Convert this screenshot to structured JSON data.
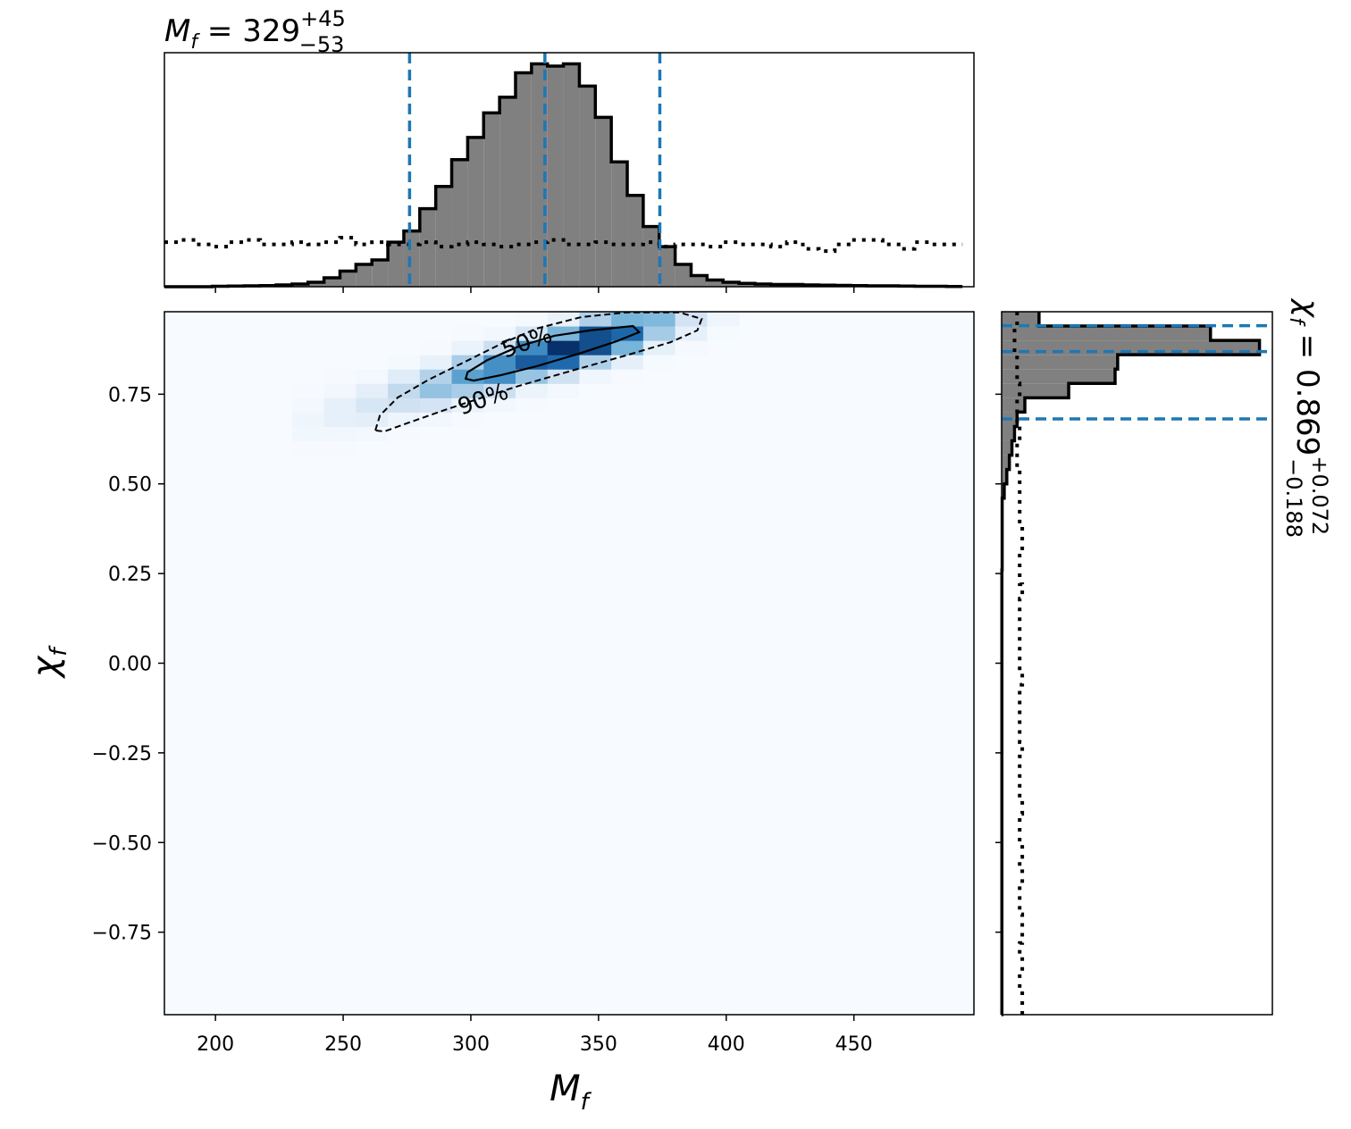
{
  "chart_data": [
    {
      "type": "histogram",
      "orientation": "vertical",
      "title": {
        "symbol": "M",
        "sub": "f",
        "rest": " = 329",
        "plus": "+45",
        "minus": "−53"
      },
      "bins": [
        180,
        186.25,
        192.5,
        198.75,
        205,
        211.25,
        217.5,
        223.75,
        230,
        236.25,
        242.5,
        248.75,
        255,
        261.25,
        267.5,
        273.75,
        280,
        286.25,
        292.5,
        298.75,
        305,
        311.25,
        317.5,
        323.75,
        330,
        336.25,
        342.5,
        348.75,
        355,
        361.25,
        367.5,
        373.75,
        380,
        386.25,
        392.5,
        398.75,
        405,
        411.25,
        417.5,
        423.75,
        430,
        436.25,
        442.5,
        448.75,
        455,
        461.25,
        467.5,
        473.75,
        480,
        486.25,
        492.5
      ],
      "values": [
        0,
        0,
        0,
        0.002,
        0.003,
        0.004,
        0.005,
        0.008,
        0.012,
        0.02,
        0.04,
        0.07,
        0.1,
        0.12,
        0.2,
        0.25,
        0.35,
        0.45,
        0.57,
        0.67,
        0.78,
        0.85,
        0.96,
        1.0,
        0.99,
        1.0,
        0.9,
        0.76,
        0.56,
        0.41,
        0.27,
        0.18,
        0.1,
        0.05,
        0.03,
        0.02,
        0.015,
        0.012,
        0.01,
        0.01,
        0.008,
        0.007,
        0.006,
        0.005,
        0.004,
        0.004,
        0.003,
        0.002,
        0.002,
        0.001
      ],
      "prior_values": [
        0.2,
        0.21,
        0.19,
        0.18,
        0.2,
        0.21,
        0.19,
        0.19,
        0.2,
        0.19,
        0.2,
        0.22,
        0.19,
        0.2,
        0.19,
        0.19,
        0.2,
        0.18,
        0.19,
        0.2,
        0.19,
        0.18,
        0.19,
        0.2,
        0.21,
        0.19,
        0.19,
        0.2,
        0.19,
        0.19,
        0.2,
        0.18,
        0.19,
        0.19,
        0.18,
        0.2,
        0.19,
        0.19,
        0.18,
        0.2,
        0.17,
        0.16,
        0.19,
        0.21,
        0.21,
        0.19,
        0.17,
        0.2,
        0.19,
        0.19
      ],
      "color": "#808080",
      "quantile_color": "#1f77b4",
      "quantiles": [
        276,
        329,
        374
      ],
      "xlim": [
        180,
        497
      ],
      "ylim": [
        0,
        1.05
      ],
      "xticks": [
        200,
        250,
        300,
        350,
        400,
        450
      ]
    },
    {
      "type": "heatmap",
      "xlabel": {
        "symbol": "M",
        "sub": "f"
      },
      "ylabel": {
        "symbol": "χ",
        "sub": "f"
      },
      "xlim": [
        180,
        497
      ],
      "ylim": [
        -0.98,
        0.98
      ],
      "xticks": [
        200,
        250,
        300,
        350,
        400,
        450
      ],
      "yticks": [
        {
          "value": -0.75,
          "label": "−0.75"
        },
        {
          "value": -0.5,
          "label": "−0.50"
        },
        {
          "value": -0.25,
          "label": "−0.25"
        },
        {
          "value": 0,
          "label": "0.00"
        },
        0.25,
        {
          "value": 0.5,
          "label": "0.50"
        },
        0.75
      ],
      "density": {
        "x_edges": [
          230,
          242.5,
          255,
          267.5,
          280,
          292.5,
          305,
          317.5,
          330,
          342.5,
          355,
          367.5,
          380,
          392.5,
          405
        ],
        "y_edges": [
          0.5,
          0.54,
          0.58,
          0.62,
          0.66,
          0.7,
          0.74,
          0.78,
          0.82,
          0.86,
          0.9,
          0.94,
          0.98
        ],
        "values": [
          [
            0,
            0,
            0.002,
            0.014,
            0.019,
            0.007,
            0.001,
            0,
            0,
            0,
            0,
            0
          ],
          [
            0,
            0,
            0.001,
            0.012,
            0.043,
            0.043,
            0.012,
            0.001,
            0,
            0,
            0,
            0
          ],
          [
            0,
            0,
            0,
            0.007,
            0.052,
            0.1,
            0.052,
            0.007,
            0,
            0,
            0,
            0
          ],
          [
            0,
            0,
            0,
            0.001,
            0.023,
            0.126,
            0.173,
            0.065,
            0.006,
            0,
            0,
            0
          ],
          [
            0,
            0,
            0,
            0,
            0.011,
            0.108,
            0.288,
            0.21,
            0.039,
            0.002,
            0,
            0
          ],
          [
            0,
            0,
            0,
            0,
            0.002,
            0.032,
            0.234,
            0.45,
            0.234,
            0.032,
            0.001,
            0
          ],
          [
            0,
            0,
            0,
            0,
            0,
            0.011,
            0.143,
            0.527,
            0.527,
            0.143,
            0.011,
            0
          ],
          [
            0,
            0,
            0,
            0,
            0,
            0.001,
            0.027,
            0.281,
            0.749,
            0.546,
            0.101,
            0.006
          ],
          [
            0,
            0,
            0,
            0,
            0,
            0,
            0.008,
            0.127,
            0.686,
            0.941,
            0.353,
            0.034
          ],
          [
            0,
            0,
            0,
            0,
            0,
            0,
            0,
            0.016,
            0.219,
            0.808,
            0.808,
            0.219
          ],
          [
            0,
            0,
            0,
            0,
            0,
            0,
            0,
            0.001,
            0.049,
            0.364,
            0.7,
            0.364
          ],
          [
            0,
            0,
            0,
            0,
            0,
            0,
            0,
            0,
            0.003,
            0.046,
            0.245,
            0.336
          ],
          [
            0,
            0,
            0,
            0,
            0,
            0,
            0,
            0,
            0,
            0.004,
            0.043,
            0.115
          ],
          [
            0,
            0,
            0,
            0,
            0,
            0,
            0,
            0,
            0,
            0,
            0.003,
            0.021
          ]
        ]
      },
      "contours": [
        {
          "label": "50%",
          "style": "solid",
          "x": [
            298.0,
            298.7,
            306.4,
            318.7,
            332.7,
            346.7,
            363.5,
            365.9,
            357.2,
            343.2,
            325.7,
            311.7,
            301.1
          ],
          "y": [
            0.793,
            0.811,
            0.845,
            0.883,
            0.913,
            0.928,
            0.94,
            0.923,
            0.898,
            0.865,
            0.828,
            0.803,
            0.788
          ]
        },
        {
          "label": "90%",
          "style": "dashed",
          "x": [
            262.6,
            264.4,
            271.4,
            283.6,
            297.6,
            311.7,
            325.7,
            343.2,
            360.7,
            381.7,
            390.4,
            388.7,
            378.2,
            360.7,
            339.7,
            318.7,
            304.6,
            290.6,
            276.6,
            266.1
          ],
          "y": [
            0.649,
            0.691,
            0.741,
            0.791,
            0.84,
            0.89,
            0.933,
            0.965,
            0.978,
            0.978,
            0.96,
            0.928,
            0.895,
            0.858,
            0.816,
            0.773,
            0.741,
            0.708,
            0.673,
            0.646
          ]
        }
      ]
    },
    {
      "type": "histogram",
      "orientation": "horizontal",
      "title": {
        "symbol": "χ",
        "sub": "f",
        "rest": " = 0.869",
        "plus": "+0.072",
        "minus": "−0.188"
      },
      "bins": [
        -0.98,
        -0.94,
        -0.9,
        -0.86,
        -0.82,
        -0.78,
        -0.74,
        -0.7,
        -0.66,
        -0.62,
        -0.58,
        -0.54,
        -0.5,
        -0.46,
        -0.42,
        -0.38,
        -0.34,
        -0.3,
        -0.26,
        -0.22,
        -0.18,
        -0.14,
        -0.1,
        -0.06,
        -0.02,
        0.02,
        0.06,
        0.1,
        0.14,
        0.18,
        0.22,
        0.26,
        0.3,
        0.34,
        0.38,
        0.42,
        0.46,
        0.5,
        0.54,
        0.58,
        0.62,
        0.66,
        0.7,
        0.74,
        0.78,
        0.82,
        0.86,
        0.9,
        0.94,
        0.98
      ],
      "values": [
        0.001,
        0.001,
        0.001,
        0.001,
        0.001,
        0.001,
        0.001,
        0.001,
        0.001,
        0.001,
        0.001,
        0.001,
        0.001,
        0.001,
        0.001,
        0.001,
        0.001,
        0.001,
        0.001,
        0.001,
        0.001,
        0.001,
        0.001,
        0.001,
        0.001,
        0.001,
        0.001,
        0.001,
        0.001,
        0.001,
        0.001,
        0.002,
        0.002,
        0.002,
        0.002,
        0.002,
        0.01,
        0.02,
        0.03,
        0.04,
        0.05,
        0.06,
        0.09,
        0.26,
        0.44,
        0.45,
        1.0,
        0.81,
        0.145
      ],
      "prior_values": [
        0.08,
        0.08,
        0.07,
        0.08,
        0.07,
        0.08,
        0.08,
        0.07,
        0.07,
        0.08,
        0.07,
        0.08,
        0.07,
        0.07,
        0.08,
        0.07,
        0.07,
        0.07,
        0.08,
        0.07,
        0.07,
        0.07,
        0.07,
        0.08,
        0.07,
        0.07,
        0.07,
        0.07,
        0.07,
        0.08,
        0.07,
        0.07,
        0.08,
        0.08,
        0.07,
        0.07,
        0.07,
        0.07,
        0.06,
        0.06,
        0.07,
        0.06,
        0.06,
        0.07,
        0.06,
        0.06,
        0.05,
        0.05,
        0.06
      ],
      "color": "#808080",
      "quantile_color": "#1f77b4",
      "quantiles": [
        0.681,
        0.869,
        0.941
      ],
      "xlim": [
        0,
        1.05
      ],
      "ylim": [
        -0.98,
        0.98
      ]
    }
  ]
}
